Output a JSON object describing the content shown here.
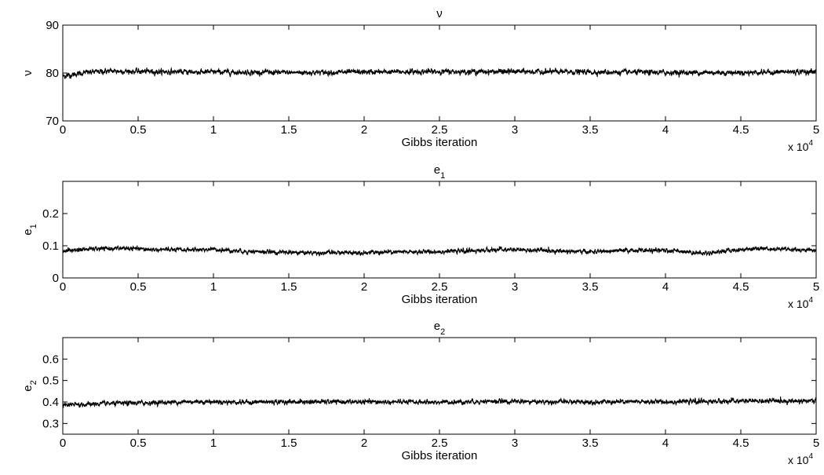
{
  "chart_data": [
    {
      "type": "line",
      "title": "ν",
      "title_sub": "",
      "xlabel": "Gibbs iteration",
      "ylabel": "ν",
      "ylabel_sub": "",
      "xlim": [
        0,
        50000
      ],
      "ylim": [
        70,
        90
      ],
      "x_ticks": [
        0,
        5000,
        10000,
        15000,
        20000,
        25000,
        30000,
        35000,
        40000,
        45000,
        50000
      ],
      "x_tick_labels": [
        "0",
        "0.5",
        "1",
        "1.5",
        "2",
        "2.5",
        "3",
        "3.5",
        "4",
        "4.5",
        "5"
      ],
      "y_ticks": [
        70,
        80,
        90
      ],
      "y_tick_labels": [
        "70",
        "80",
        "90"
      ],
      "x_multiplier_base": "x 10",
      "x_multiplier_exp": "4",
      "grid": false,
      "series": [
        {
          "n_iterations": 50000,
          "trace_mean": [
            [
              0,
              79.3
            ],
            [
              1500,
              80.1
            ],
            [
              3000,
              80.4
            ],
            [
              6000,
              80.3
            ],
            [
              10000,
              80.2
            ],
            [
              15000,
              80.1
            ],
            [
              20000,
              80.2
            ],
            [
              25000,
              80.3
            ],
            [
              30000,
              80.3
            ],
            [
              35000,
              80.2
            ],
            [
              40000,
              80.1
            ],
            [
              45000,
              80.1
            ],
            [
              50000,
              80.3
            ]
          ],
          "trace_band": 0.9,
          "color": "#000000"
        }
      ]
    },
    {
      "type": "line",
      "title": "e",
      "title_sub": "1",
      "xlabel": "Gibbs iteration",
      "ylabel": "e",
      "ylabel_sub": "1",
      "xlim": [
        0,
        50000
      ],
      "ylim": [
        0,
        0.3
      ],
      "x_ticks": [
        0,
        5000,
        10000,
        15000,
        20000,
        25000,
        30000,
        35000,
        40000,
        45000,
        50000
      ],
      "x_tick_labels": [
        "0",
        "0.5",
        "1",
        "1.5",
        "2",
        "2.5",
        "3",
        "3.5",
        "4",
        "4.5",
        "5"
      ],
      "y_ticks": [
        0,
        0.1,
        0.2
      ],
      "y_tick_labels": [
        "0",
        "0.1",
        "0.2"
      ],
      "x_multiplier_base": "x 10",
      "x_multiplier_exp": "4",
      "grid": false,
      "series": [
        {
          "n_iterations": 50000,
          "trace_mean": [
            [
              0,
              0.085
            ],
            [
              2000,
              0.09
            ],
            [
              4000,
              0.092
            ],
            [
              6000,
              0.088
            ],
            [
              8000,
              0.087
            ],
            [
              10000,
              0.089
            ],
            [
              12000,
              0.083
            ],
            [
              14000,
              0.08
            ],
            [
              17000,
              0.078
            ],
            [
              20000,
              0.079
            ],
            [
              24000,
              0.081
            ],
            [
              27000,
              0.084
            ],
            [
              29000,
              0.088
            ],
            [
              32000,
              0.085
            ],
            [
              35000,
              0.081
            ],
            [
              38000,
              0.086
            ],
            [
              41000,
              0.084
            ],
            [
              42500,
              0.076
            ],
            [
              44000,
              0.084
            ],
            [
              46000,
              0.092
            ],
            [
              48000,
              0.089
            ],
            [
              50000,
              0.086
            ]
          ],
          "trace_band": 0.011,
          "color": "#000000"
        }
      ]
    },
    {
      "type": "line",
      "title": "e",
      "title_sub": "2",
      "xlabel": "Gibbs iteration",
      "ylabel": "e",
      "ylabel_sub": "2",
      "xlim": [
        0,
        50000
      ],
      "ylim": [
        0.25,
        0.7
      ],
      "x_ticks": [
        0,
        5000,
        10000,
        15000,
        20000,
        25000,
        30000,
        35000,
        40000,
        45000,
        50000
      ],
      "x_tick_labels": [
        "0",
        "0.5",
        "1",
        "1.5",
        "2",
        "2.5",
        "3",
        "3.5",
        "4",
        "4.5",
        "5"
      ],
      "y_ticks": [
        0.3,
        0.4,
        0.5,
        0.6
      ],
      "y_tick_labels": [
        "0.3",
        "0.4",
        "0.5",
        "0.6"
      ],
      "x_multiplier_base": "x 10",
      "x_multiplier_exp": "4",
      "grid": false,
      "series": [
        {
          "n_iterations": 50000,
          "trace_mean": [
            [
              0,
              0.385
            ],
            [
              3000,
              0.392
            ],
            [
              6000,
              0.397
            ],
            [
              9000,
              0.402
            ],
            [
              12000,
              0.399
            ],
            [
              15000,
              0.401
            ],
            [
              20000,
              0.4
            ],
            [
              25000,
              0.399
            ],
            [
              28000,
              0.403
            ],
            [
              32000,
              0.401
            ],
            [
              36000,
              0.4
            ],
            [
              40000,
              0.401
            ],
            [
              45000,
              0.404
            ],
            [
              50000,
              0.405
            ]
          ],
          "trace_band": 0.018,
          "color": "#000000"
        }
      ]
    }
  ]
}
